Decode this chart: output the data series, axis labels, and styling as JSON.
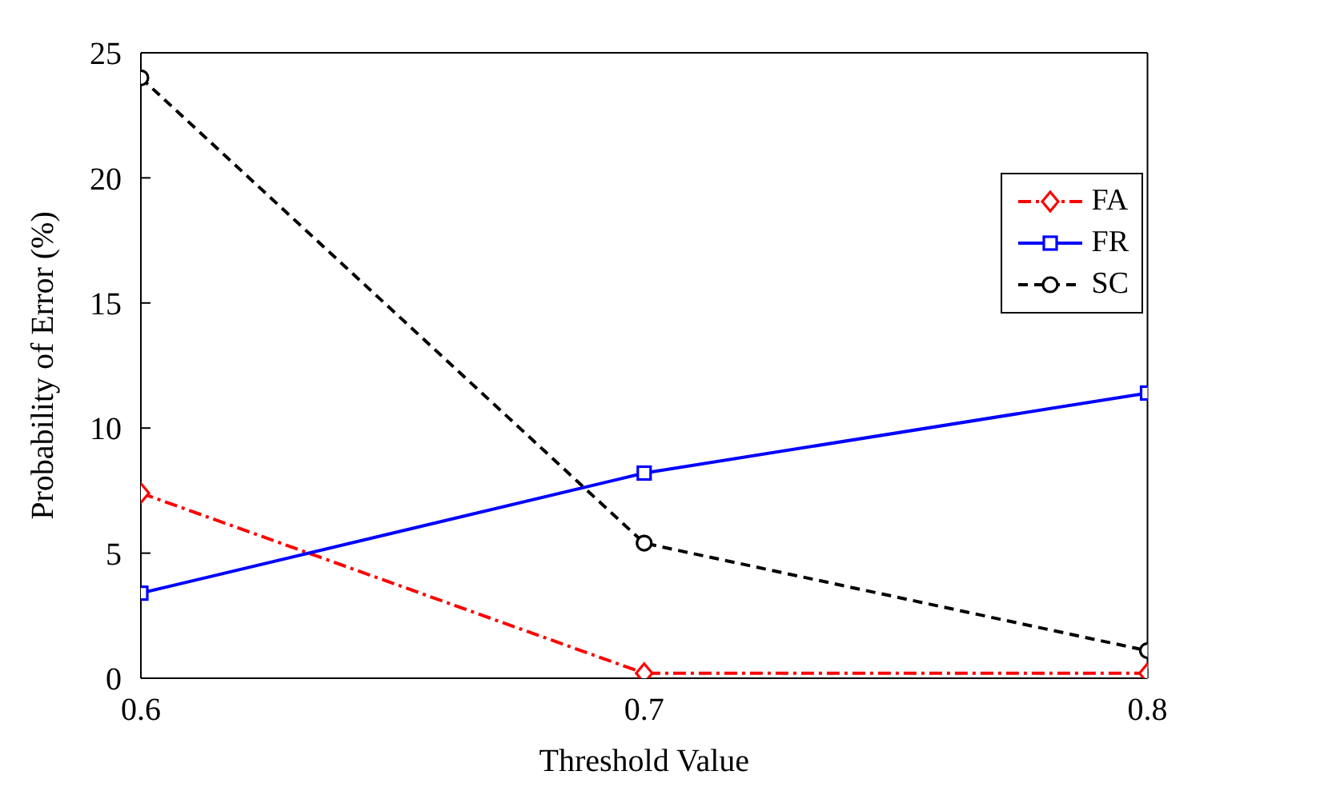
{
  "chart_data": {
    "type": "line",
    "xlabel": "Threshold Value",
    "ylabel": "Probability of Error (%)",
    "x": [
      0.6,
      0.7,
      0.8
    ],
    "xlim": [
      0.6,
      0.8
    ],
    "xticks": [
      0.6,
      0.7,
      0.8
    ],
    "ylim": [
      0,
      25
    ],
    "yticks": [
      0,
      5,
      10,
      15,
      20,
      25
    ],
    "grid": false,
    "legend": "top right",
    "series": [
      {
        "name": "FA",
        "color": "#ff0000",
        "values": [
          7.4,
          0.2,
          0.2
        ],
        "marker": "diamond",
        "line_style": "dashdot"
      },
      {
        "name": "FR",
        "color": "#0000ff",
        "values": [
          3.4,
          8.2,
          11.4
        ],
        "marker": "square",
        "line_style": "solid"
      },
      {
        "name": "SC",
        "color": "#000000",
        "values": [
          24,
          5.4,
          1.1
        ],
        "marker": "circle",
        "line_style": "dashed"
      }
    ]
  }
}
